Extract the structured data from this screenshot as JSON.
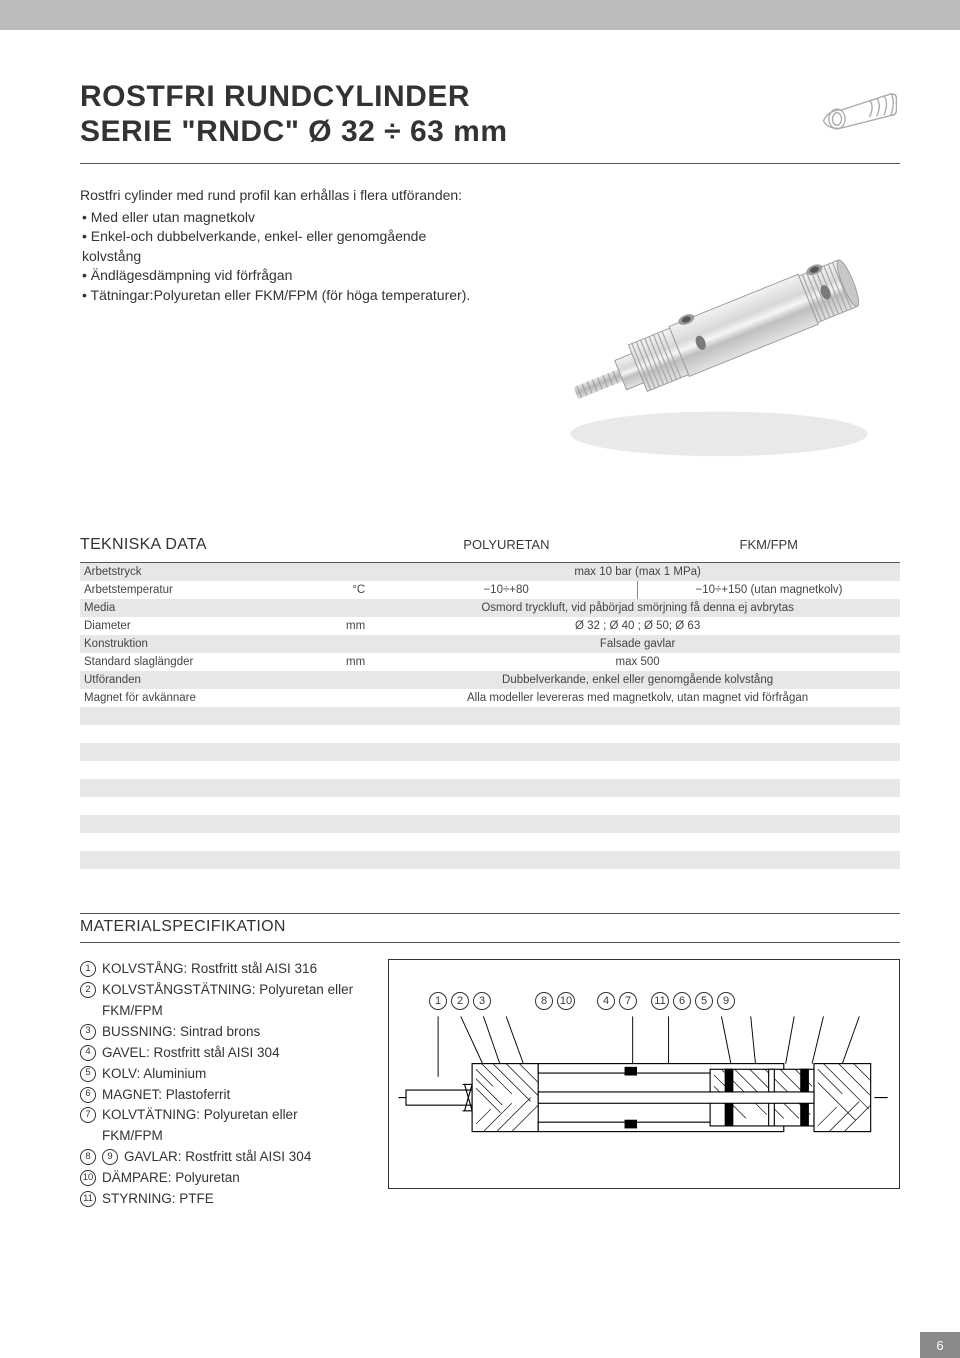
{
  "title_line1": "ROSTFRI RUNDCYLINDER",
  "title_line2": "SERIE \"RNDC\" Ø 32 ÷ 63 mm",
  "intro_lead": "Rostfri cylinder med rund profil kan erhållas i flera utföranden:",
  "bullets": [
    "• Med eller utan magnetkolv",
    "• Enkel-och dubbelverkande, enkel- eller genomgående kolvstång",
    "• Ändlägesdämpning vid förfrågan",
    "• Tätningar:Polyuretan eller FKM/FPM (för höga temperaturer)."
  ],
  "tekniska_title": "TEKNISKA DATA",
  "col_poly": "POLYURETAN",
  "col_fkm": "FKM/FPM",
  "rows": [
    {
      "label": "Arbetstryck",
      "unit": "",
      "val": "max 10 bar (max 1 MPa)",
      "split": false
    },
    {
      "label": "Arbetstemperatur",
      "unit": "°C",
      "a": "−10÷+80",
      "b": "−10÷+150 (utan magnetkolv)",
      "split": true
    },
    {
      "label": "Media",
      "unit": "",
      "val": "Osmord tryckluft, vid påbörjad smörjning få denna ej avbrytas",
      "split": false
    },
    {
      "label": "Diameter",
      "unit": "mm",
      "val": "Ø 32 ; Ø 40 ; Ø 50;  Ø 63",
      "split": false
    },
    {
      "label": "Konstruktion",
      "unit": "",
      "val": "Falsade gavlar",
      "split": false
    },
    {
      "label": "Standard slaglängder",
      "unit": "mm",
      "val": "max 500",
      "split": false
    },
    {
      "label": "Utföranden",
      "unit": "",
      "val": "Dubbelverkande, enkel eller genomgående kolvstång",
      "split": false
    },
    {
      "label": "Magnet för avkännare",
      "unit": "",
      "val": "Alla modeller levereras med magnetkolv, utan magnet vid förfrågan",
      "split": false
    }
  ],
  "mat_title": "MATERIALSPECIFIKATION",
  "mat_items": [
    {
      "n": "1",
      "text": "KOLVSTÅNG: Rostfritt stål AISI 316",
      "sub": null
    },
    {
      "n": "2",
      "text": "KOLVSTÅNGSTÄTNING: Polyuretan eller",
      "sub": "FKM/FPM"
    },
    {
      "n": "3",
      "text": "BUSSNING: Sintrad brons",
      "sub": null
    },
    {
      "n": "4",
      "text": "GAVEL: Rostfritt stål AISI 304",
      "sub": null
    },
    {
      "n": "5",
      "text": "KOLV: Aluminium",
      "sub": null
    },
    {
      "n": "6",
      "text": "MAGNET: Plastoferrit",
      "sub": null
    },
    {
      "n": "7",
      "text": "KOLVTÄTNING: Polyuretan eller",
      "sub": "FKM/FPM"
    },
    {
      "n": "8,9",
      "text": "GAVLAR: Rostfritt stål AISI 304",
      "sub": null
    },
    {
      "n": "10",
      "text": "DÄMPARE: Polyuretan",
      "sub": null
    },
    {
      "n": "11",
      "text": "STYRNING: PTFE",
      "sub": null
    }
  ],
  "callout_order": [
    "1",
    "2",
    "3",
    "8",
    "10",
    "4",
    "7",
    "11",
    "6",
    "5",
    "9"
  ],
  "page_number": "6",
  "colors": {
    "topbar": "#bcbcbc",
    "row_odd": "#e8e7e7",
    "text": "#333333",
    "pagenum_bg": "#8a8a8a"
  }
}
